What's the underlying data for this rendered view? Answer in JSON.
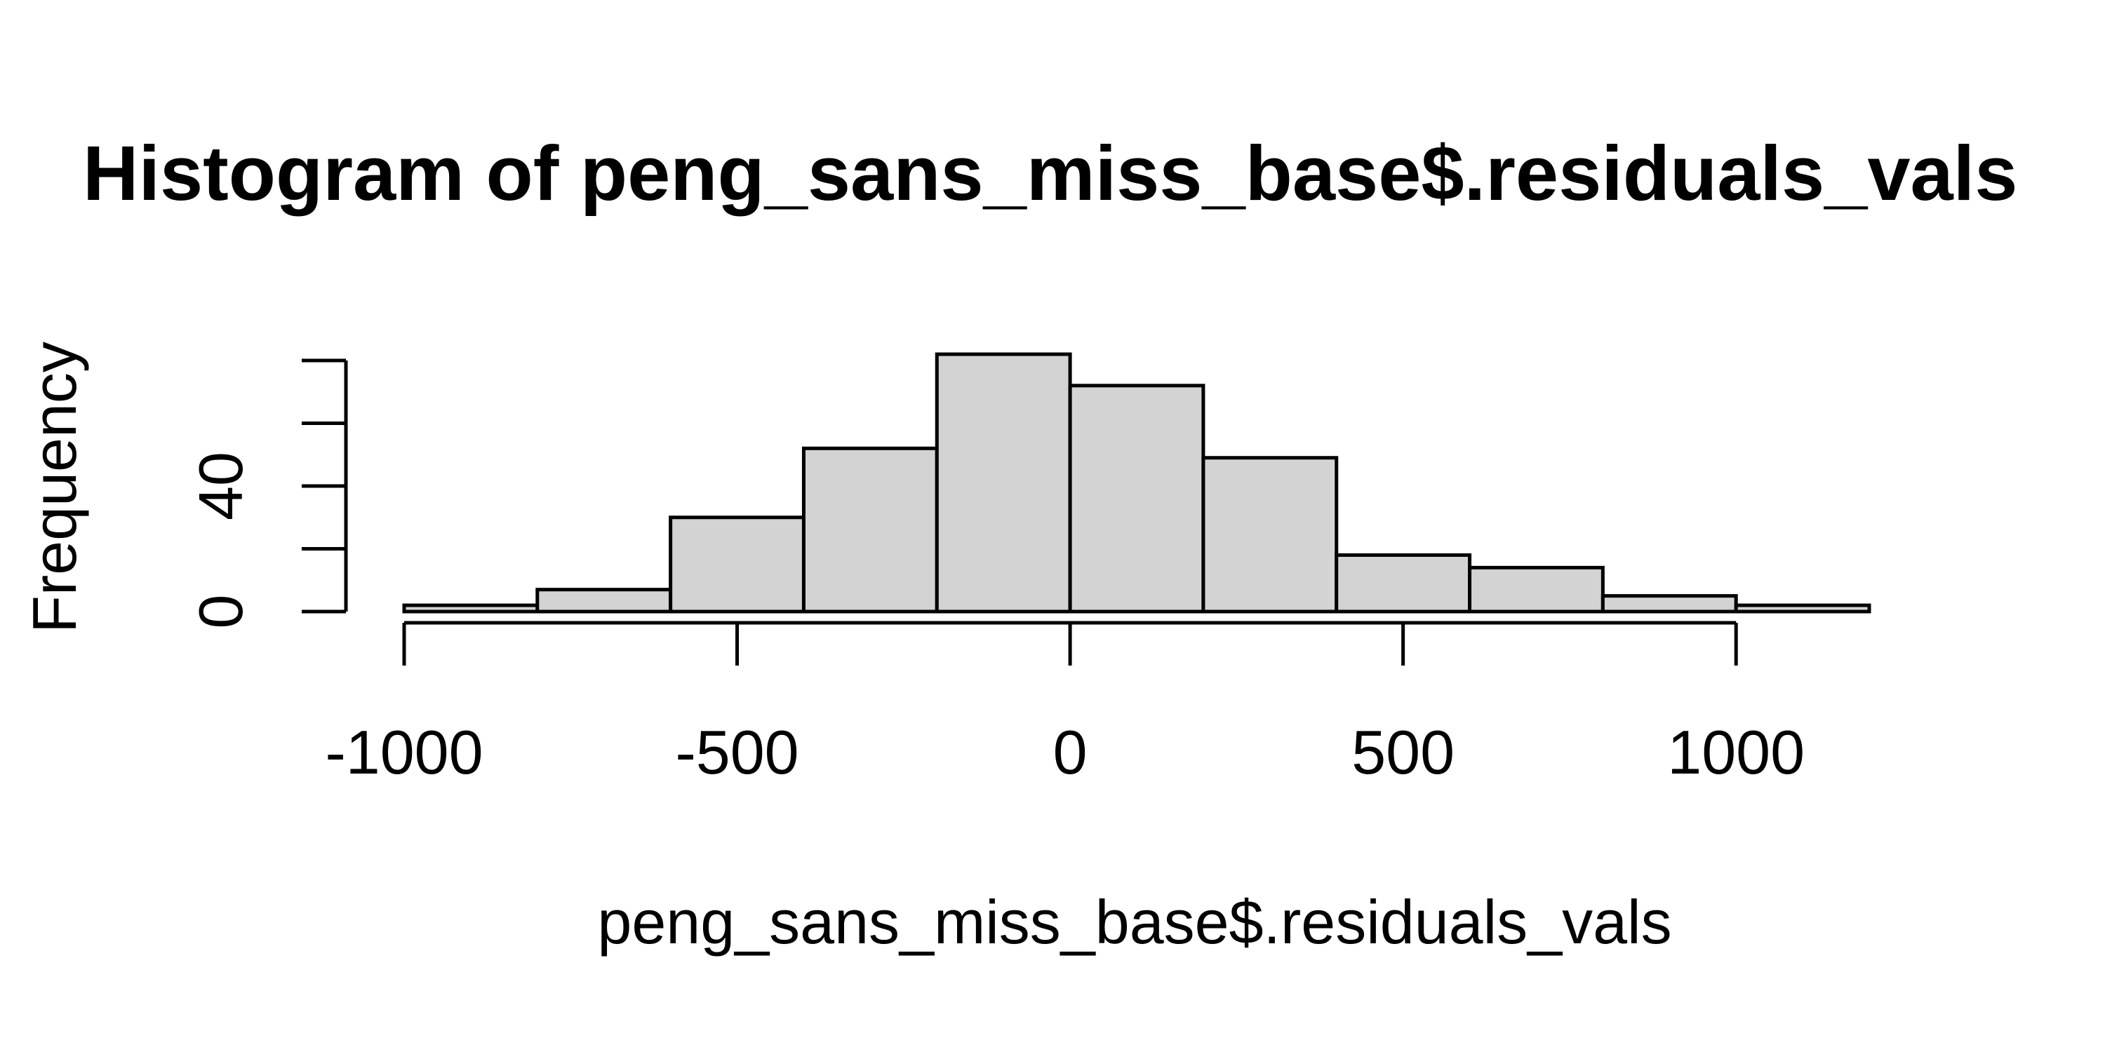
{
  "chart_data": {
    "type": "bar",
    "title": "Histogram of peng_sans_miss_base$.residuals_vals",
    "xlabel": "peng_sans_miss_base$.residuals_vals",
    "ylabel": "Frequency",
    "bin_edges": [
      -1000,
      -800,
      -600,
      -400,
      -200,
      0,
      200,
      400,
      600,
      800,
      1000,
      1200
    ],
    "values": [
      2,
      7,
      30,
      52,
      82,
      72,
      49,
      18,
      14,
      5,
      2
    ],
    "xlim": [
      -1000,
      1200
    ],
    "ylim": [
      0,
      80
    ],
    "x_ticks": [
      -1000,
      -500,
      0,
      500,
      1000
    ],
    "x_tick_labels": [
      "-1000",
      "-500",
      "0",
      "500",
      "1000"
    ],
    "y_ticks": [
      0,
      20,
      40,
      60,
      80
    ],
    "y_tick_labels": [
      "0",
      "",
      "40",
      "",
      ""
    ],
    "grid": false,
    "legend": "none"
  },
  "colors": {
    "bar_fill": "#d3d3d3",
    "bar_stroke": "#000000",
    "background": "#ffffff"
  }
}
